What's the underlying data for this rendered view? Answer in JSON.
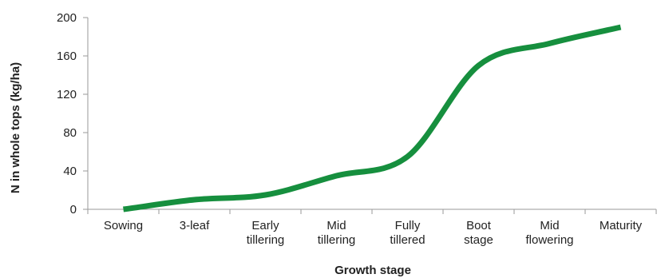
{
  "chart_data": {
    "type": "line",
    "title": "",
    "xlabel": "Growth stage",
    "ylabel": "N in whole tops (kg/ha)",
    "categories": [
      [
        "Sowing"
      ],
      [
        "3-leaf"
      ],
      [
        "Early",
        "tillering"
      ],
      [
        "Mid",
        "tillering"
      ],
      [
        "Fully",
        "tillered"
      ],
      [
        "Boot",
        "stage"
      ],
      [
        "Mid",
        "flowering"
      ],
      [
        "Maturity"
      ]
    ],
    "series": [
      {
        "values": [
          0,
          10,
          15,
          35,
          55,
          150,
          173,
          190
        ]
      }
    ],
    "yticks": [
      "0",
      "40",
      "80",
      "120",
      "160",
      "200"
    ],
    "ylim": [
      0,
      200
    ],
    "grid": false,
    "legend": "none",
    "line_color": "#168f3e",
    "axis_color": "#9a9a9a"
  }
}
